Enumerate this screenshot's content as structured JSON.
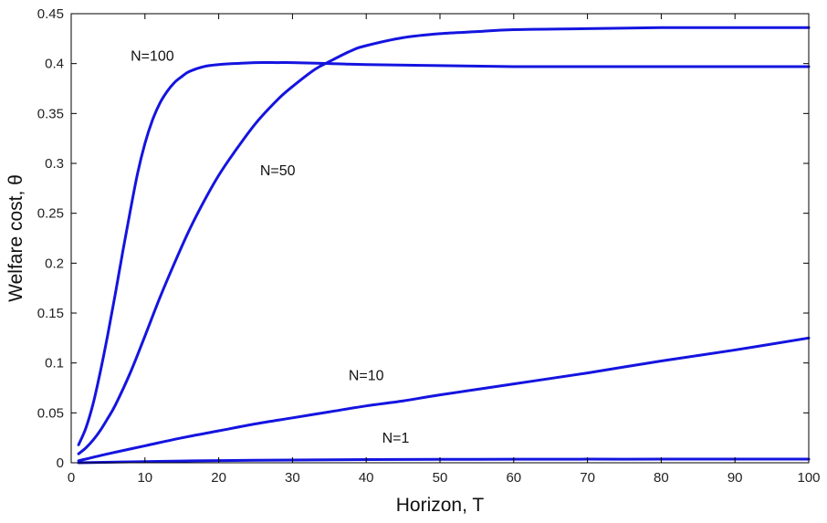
{
  "chart_data": {
    "type": "line",
    "title": "",
    "xlabel": "Horizon, T",
    "ylabel": "Welfare cost, θ",
    "xlim": [
      0,
      100
    ],
    "ylim": [
      0,
      0.45
    ],
    "xticks": [
      0,
      10,
      20,
      30,
      40,
      50,
      60,
      70,
      80,
      90,
      100
    ],
    "xtick_labels": [
      "0",
      "10",
      "20",
      "30",
      "40",
      "50",
      "60",
      "70",
      "80",
      "90",
      "100"
    ],
    "yticks": [
      0,
      0.05,
      0.1,
      0.15,
      0.2,
      0.25,
      0.3,
      0.35,
      0.4,
      0.45
    ],
    "ytick_labels": [
      "0",
      "0.05",
      "0.1",
      "0.15",
      "0.2",
      "0.25",
      "0.3",
      "0.35",
      "0.4",
      "0.45"
    ],
    "grid": false,
    "line_color": "#1414e0",
    "series": [
      {
        "name": "N=100",
        "x": [
          1,
          2,
          3,
          4,
          5,
          6,
          7,
          8,
          9,
          10,
          11,
          12,
          13,
          14,
          15,
          16,
          18,
          20,
          22,
          25,
          28,
          30,
          35,
          40,
          50,
          60,
          70,
          80,
          90,
          100
        ],
        "y": [
          0.018,
          0.035,
          0.06,
          0.093,
          0.13,
          0.17,
          0.212,
          0.252,
          0.29,
          0.32,
          0.343,
          0.36,
          0.372,
          0.381,
          0.387,
          0.392,
          0.397,
          0.399,
          0.4,
          0.401,
          0.401,
          0.401,
          0.4,
          0.399,
          0.398,
          0.397,
          0.397,
          0.397,
          0.397,
          0.397
        ]
      },
      {
        "name": "N=50",
        "x": [
          1,
          2,
          3,
          4,
          5,
          6,
          8,
          10,
          12,
          14,
          16,
          18,
          20,
          22,
          25,
          28,
          30,
          33,
          35,
          38,
          40,
          45,
          50,
          55,
          60,
          70,
          80,
          90,
          100
        ],
        "y": [
          0.009,
          0.015,
          0.023,
          0.033,
          0.045,
          0.058,
          0.09,
          0.127,
          0.165,
          0.2,
          0.233,
          0.262,
          0.288,
          0.31,
          0.34,
          0.364,
          0.377,
          0.394,
          0.402,
          0.413,
          0.418,
          0.426,
          0.43,
          0.432,
          0.434,
          0.435,
          0.436,
          0.436,
          0.436
        ]
      },
      {
        "name": "N=10",
        "x": [
          1,
          5,
          10,
          15,
          20,
          25,
          30,
          35,
          40,
          45,
          50,
          60,
          70,
          80,
          90,
          100
        ],
        "y": [
          0.002,
          0.009,
          0.017,
          0.025,
          0.032,
          0.039,
          0.045,
          0.051,
          0.057,
          0.062,
          0.068,
          0.079,
          0.09,
          0.102,
          0.113,
          0.125
        ]
      },
      {
        "name": "N=1",
        "x": [
          1,
          10,
          20,
          30,
          40,
          50,
          60,
          70,
          80,
          90,
          100
        ],
        "y": [
          0.0,
          0.0012,
          0.0022,
          0.0028,
          0.0032,
          0.0034,
          0.0035,
          0.0036,
          0.0036,
          0.0037,
          0.0037
        ]
      }
    ],
    "annotations": [
      {
        "text": "N=100",
        "x": 11,
        "y": 0.403
      },
      {
        "text": "N=50",
        "x": 28,
        "y": 0.288
      },
      {
        "text": "N=10",
        "x": 40,
        "y": 0.083
      },
      {
        "text": "N=1",
        "x": 44,
        "y": 0.02
      }
    ]
  }
}
